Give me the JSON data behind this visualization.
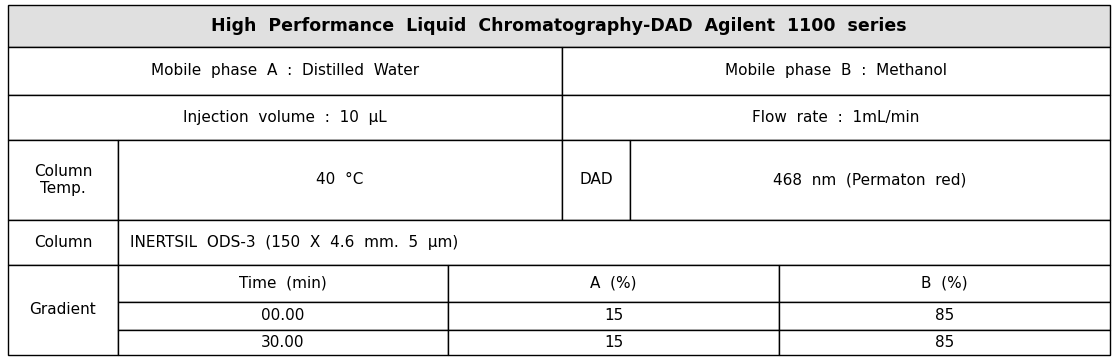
{
  "title": "High  Performance  Liquid  Chromatography-DAD  Agilent  1100  series",
  "title_bg": "#e0e0e0",
  "row1_left": "Mobile  phase  A  :  Distilled  Water",
  "row1_right": "Mobile  phase  B  :  Methanol",
  "row2_left": "Injection  volume  :  10  μL",
  "row2_right": "Flow  rate  :  1mL/min",
  "col_temp_label": "Column\nTemp.",
  "col_temp_value": "40  °C",
  "dad_label": "DAD",
  "dad_value": "468  nm  (Permaton  red)",
  "column_label": "Column",
  "column_value": "INERTSIL  ODS-3  (150  X  4.6  mm.  5  μm)",
  "gradient_label": "Gradient",
  "gradient_headers": [
    "Time  (min)",
    "A  (%)",
    "B  (%)"
  ],
  "gradient_rows": [
    [
      "00.00",
      "15",
      "85"
    ],
    [
      "30.00",
      "15",
      "85"
    ]
  ],
  "border_color": "#000000",
  "bg_white": "#ffffff",
  "title_fontsize": 12.5,
  "cell_fontsize": 11,
  "lw": 1.0
}
